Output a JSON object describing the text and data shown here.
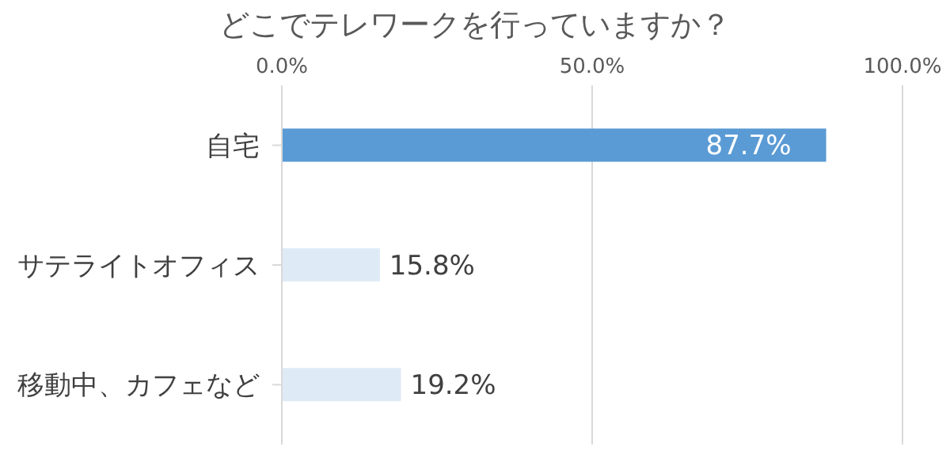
{
  "chart_data": {
    "type": "bar",
    "orientation": "horizontal",
    "title": "どこでテレワークを行っていますか？",
    "categories": [
      "自宅",
      "サテライトオフィス",
      "移動中、カフェなど"
    ],
    "values": [
      87.7,
      15.8,
      19.2
    ],
    "colors": [
      "#5b9bd5",
      "#deebf7",
      "#deebf7"
    ],
    "value_labels": [
      "87.7%",
      "15.8%",
      "19.2%"
    ],
    "xlim": [
      0,
      100
    ],
    "xticks": [
      {
        "value": 0,
        "label": "0.0%"
      },
      {
        "value": 50,
        "label": "50.0%"
      },
      {
        "value": 100,
        "label": "100.0%"
      }
    ],
    "grid": "x"
  }
}
